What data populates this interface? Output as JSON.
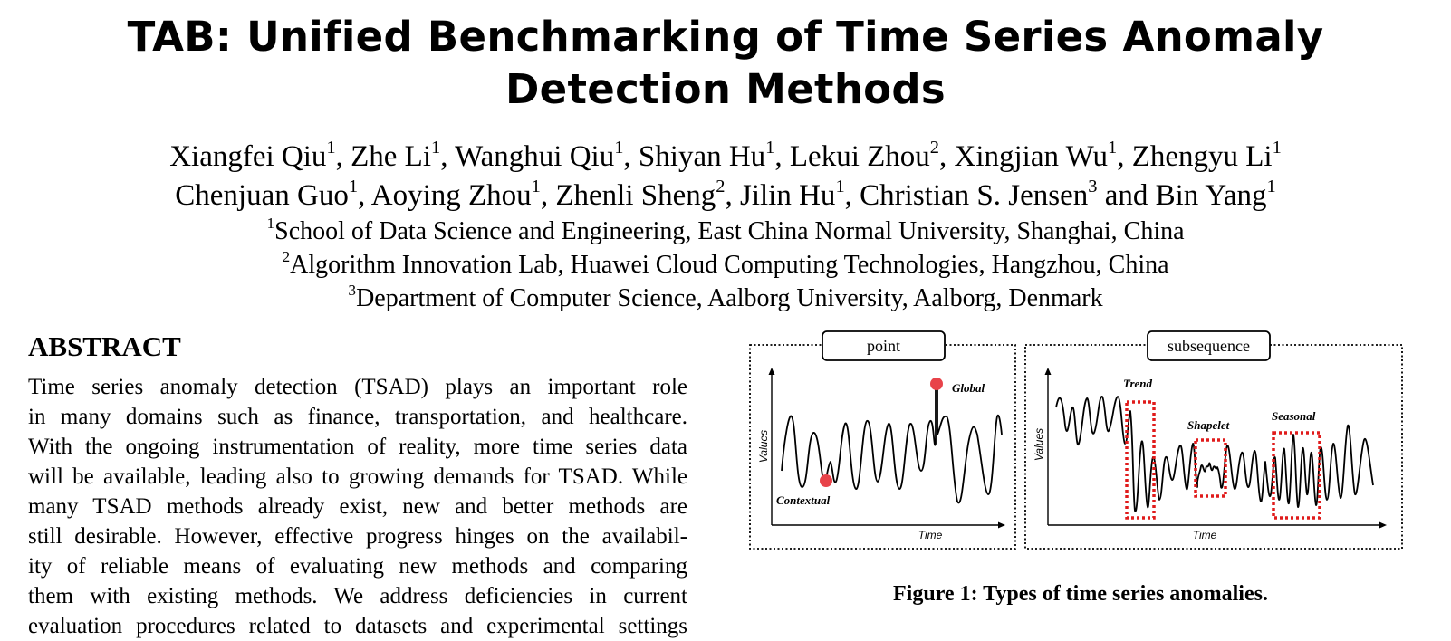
{
  "title_line1": "TAB: Unified Benchmarking of Time Series Anomaly",
  "title_line2": "Detection Methods",
  "authors_line1": [
    {
      "name": "Xiangfei Qiu",
      "sup": "1",
      "sep": ", "
    },
    {
      "name": "Zhe Li",
      "sup": "1",
      "sep": ", "
    },
    {
      "name": "Wanghui Qiu",
      "sup": "1",
      "sep": ", "
    },
    {
      "name": "Shiyan Hu",
      "sup": "1",
      "sep": ", "
    },
    {
      "name": "Lekui Zhou",
      "sup": "2",
      "sep": ", "
    },
    {
      "name": "Xingjian Wu",
      "sup": "1",
      "sep": ", "
    },
    {
      "name": "Zhengyu Li",
      "sup": "1",
      "sep": ""
    }
  ],
  "authors_line2": [
    {
      "name": "Chenjuan Guo",
      "sup": "1",
      "sep": ", "
    },
    {
      "name": "Aoying Zhou",
      "sup": "1",
      "sep": ", "
    },
    {
      "name": "Zhenli Sheng",
      "sup": "2",
      "sep": ", "
    },
    {
      "name": "Jilin Hu",
      "sup": "1",
      "sep": ", "
    },
    {
      "name": "Christian S. Jensen",
      "sup": "3",
      "sep": " and "
    },
    {
      "name": "Bin Yang",
      "sup": "1",
      "sep": ""
    }
  ],
  "affiliations": [
    {
      "sup": "1",
      "text": "School of Data Science and Engineering, East China Normal University, Shanghai, China"
    },
    {
      "sup": "2",
      "text": "Algorithm Innovation Lab, Huawei Cloud Computing Technologies, Hangzhou, China"
    },
    {
      "sup": "3",
      "text": "Department of Computer Science, Aalborg University, Aalborg, Denmark"
    }
  ],
  "abstract_heading": "ABSTRACT",
  "abstract_lines": [
    "Time series anomaly detection (TSAD) plays an important role",
    "in many domains such as finance, transportation, and healthcare.",
    "With the ongoing instrumentation of reality, more time series data",
    "will be available, leading also to growing demands for TSAD. While",
    "many TSAD methods already exist, new and better methods are",
    "still desirable. However, effective progress hinges on the availabil-",
    "ity of reliable means of evaluating new methods and comparing",
    "them with existing methods. We address deficiencies in current",
    "evaluation procedures related to datasets and experimental settings"
  ],
  "figure": {
    "left_panel": {
      "label": "point",
      "y_axis": "Values",
      "x_axis": "Time",
      "annotations": [
        "Global",
        "Contextual"
      ]
    },
    "right_panel": {
      "label": "subsequence",
      "y_axis": "Values",
      "x_axis": "Time",
      "annotations": [
        "Trend",
        "Shapelet",
        "Seasonal"
      ]
    },
    "colors": {
      "anomaly": "#e8434a",
      "box": "#e01b1b"
    }
  },
  "caption": "Figure 1: Types of time series anomalies."
}
